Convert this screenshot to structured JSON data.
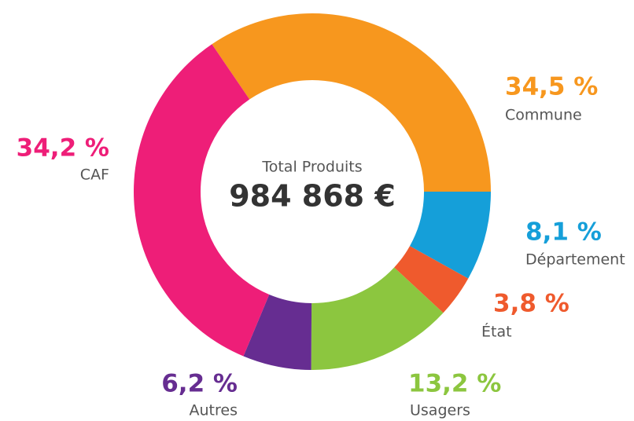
{
  "chart_data": {
    "type": "donut",
    "center_title": "Total Produits",
    "center_value": "984 868 €",
    "categories": [
      "Commune",
      "Département",
      "État",
      "Usagers",
      "Autres",
      "CAF"
    ],
    "values": [
      34.5,
      8.1,
      3.8,
      13.2,
      6.2,
      34.2
    ],
    "value_labels": [
      "34,5 %",
      "8,1 %",
      "3,8 %",
      "13,2 %",
      "6,2 %",
      "34,2 %"
    ],
    "colors": [
      "#f7971e",
      "#159fd9",
      "#ef5a2d",
      "#8cc63f",
      "#662d91",
      "#ee1e78"
    ]
  }
}
